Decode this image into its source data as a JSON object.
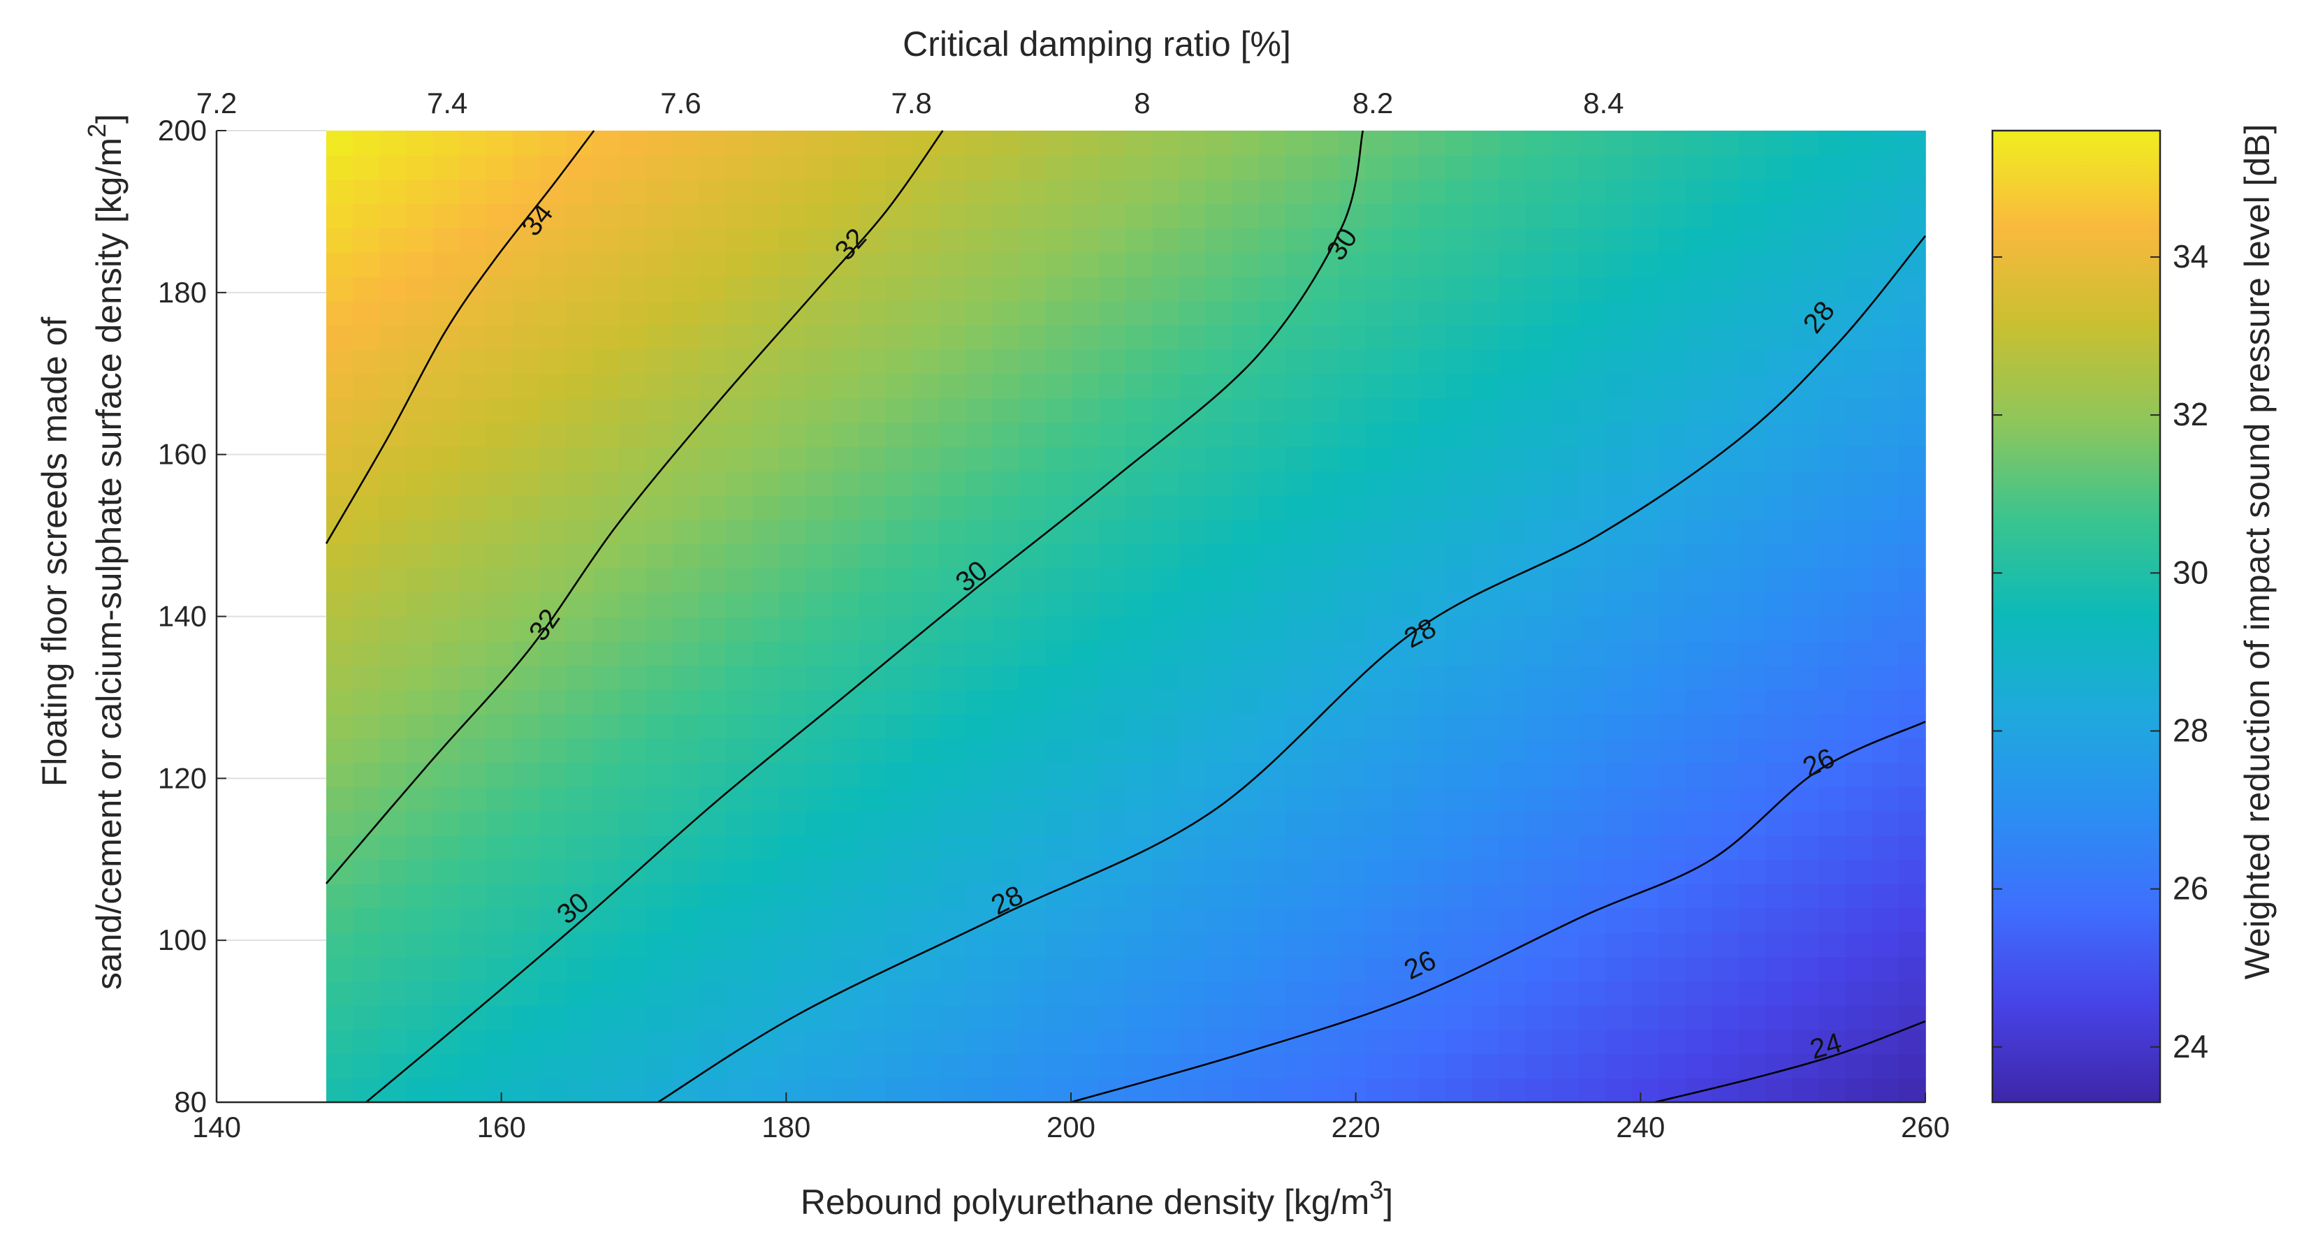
{
  "chart_data": {
    "type": "heatmap",
    "subtype": "filled surface with contour lines",
    "xlabel": {
      "text": "Rebound polyurethane density [kg/m",
      "sup": "3",
      "end": "]"
    },
    "top_xlabel": "Critical damping ratio [%]",
    "ylabel": {
      "line1": "Floating floor screeds made of",
      "line2": "sand/cement or calcium-sulphate surface density [kg/m",
      "sup": "2",
      "end": "]"
    },
    "colorbar_label": "Weighted reduction of impact sound pressure level [dB]",
    "xlim": [
      140,
      260
    ],
    "ylim": [
      80,
      200
    ],
    "data_x_range": [
      147.7,
      260
    ],
    "x_ticks": [
      "140",
      "160",
      "180",
      "200",
      "220",
      "240",
      "260"
    ],
    "y_ticks": [
      "80",
      "100",
      "120",
      "140",
      "160",
      "180",
      "200"
    ],
    "top_ticks": [
      {
        "x": 140,
        "label": "7.2"
      },
      {
        "x": 156.2,
        "label": "7.4"
      },
      {
        "x": 172.6,
        "label": "7.6"
      },
      {
        "x": 188.8,
        "label": "7.8"
      },
      {
        "x": 205,
        "label": "8"
      },
      {
        "x": 221.2,
        "label": "8.2"
      },
      {
        "x": 237.4,
        "label": "8.4"
      }
    ],
    "clim": [
      23.3,
      35.6
    ],
    "colorbar_ticks": [
      "24",
      "26",
      "28",
      "30",
      "32",
      "34"
    ],
    "surface_corner_values": {
      "top_left": 35.6,
      "top_right": 29.2,
      "bottom_left": 29.8,
      "bottom_right": 23.4
    },
    "contours": [
      {
        "level": 34,
        "label": "34",
        "points": [
          [
            147.7,
            149
          ],
          [
            152,
            162
          ],
          [
            156,
            175
          ],
          [
            159.5,
            184
          ],
          [
            163.5,
            193
          ],
          [
            166.5,
            200
          ]
        ],
        "labels": [
          {
            "x": 162.5,
            "y": 189
          }
        ]
      },
      {
        "level": 32,
        "label": "32",
        "points": [
          [
            147.7,
            107
          ],
          [
            155,
            122
          ],
          [
            162,
            136
          ],
          [
            168,
            151
          ],
          [
            175,
            166
          ],
          [
            182,
            180
          ],
          [
            187,
            190
          ],
          [
            191,
            200
          ]
        ],
        "labels": [
          {
            "x": 163,
            "y": 139
          },
          {
            "x": 184.5,
            "y": 186
          }
        ]
      },
      {
        "level": 30,
        "label": "30",
        "points": [
          [
            150.5,
            80
          ],
          [
            158,
            91
          ],
          [
            166,
            103
          ],
          [
            175,
            117
          ],
          [
            184,
            130
          ],
          [
            193,
            143
          ],
          [
            203,
            157
          ],
          [
            213,
            172
          ],
          [
            219,
            188
          ],
          [
            220.5,
            200
          ]
        ],
        "labels": [
          {
            "x": 165,
            "y": 104
          },
          {
            "x": 193,
            "y": 145
          },
          {
            "x": 219,
            "y": 186
          }
        ]
      },
      {
        "level": 28,
        "label": "28",
        "points": [
          [
            171,
            80
          ],
          [
            181,
            91
          ],
          [
            195,
            103
          ],
          [
            210,
            116
          ],
          [
            224,
            138
          ],
          [
            237,
            150
          ],
          [
            247,
            162
          ],
          [
            254,
            174
          ],
          [
            260,
            187
          ]
        ],
        "labels": [
          {
            "x": 195.5,
            "y": 105
          },
          {
            "x": 224.5,
            "y": 138
          },
          {
            "x": 252.5,
            "y": 177
          }
        ]
      },
      {
        "level": 26,
        "label": "26",
        "points": [
          [
            200,
            80
          ],
          [
            212,
            86
          ],
          [
            224,
            93
          ],
          [
            236,
            103
          ],
          [
            245,
            110
          ],
          [
            252.5,
            121
          ],
          [
            260,
            127
          ]
        ],
        "labels": [
          {
            "x": 224.5,
            "y": 97
          },
          {
            "x": 252.5,
            "y": 122
          }
        ]
      },
      {
        "level": 24,
        "label": "24",
        "points": [
          [
            241,
            80
          ],
          [
            248,
            83
          ],
          [
            254,
            86
          ],
          [
            260,
            90
          ]
        ],
        "labels": [
          {
            "x": 253,
            "y": 87
          }
        ]
      }
    ]
  },
  "colors": {
    "colormap": [
      "#3e26a8",
      "#4743e6",
      "#3e6ffd",
      "#2b8ff2",
      "#1fa9dd",
      "#0cbab9",
      "#3ac48f",
      "#8ec65b",
      "#c9bf31",
      "#f9b93e",
      "#f0ee1f"
    ],
    "axis": "#262626",
    "grid": "#dfdfdf",
    "contour": "#000000"
  }
}
